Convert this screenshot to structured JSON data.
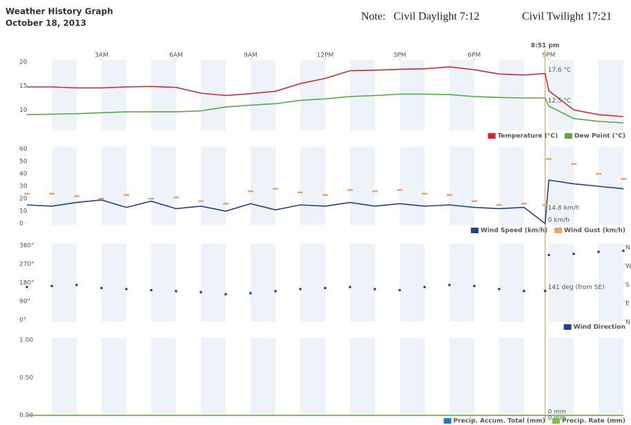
{
  "header": {
    "title": "Weather History Graph",
    "date": "October 18, 2013",
    "note": [
      "Note:",
      "Civil Daylight 7:12",
      "Civil Twilight 17:21"
    ]
  },
  "chart_data": [
    {
      "type": "line",
      "xlim": [
        0,
        24
      ],
      "xticks": [
        {
          "value": 3,
          "label": "3AM"
        },
        {
          "value": 6,
          "label": "6AM"
        },
        {
          "value": 9,
          "label": "9AM"
        },
        {
          "value": 12,
          "label": "12PM"
        },
        {
          "value": 15,
          "label": "3PM"
        },
        {
          "value": 18,
          "label": "6PM"
        },
        {
          "value": 21,
          "label": "9PM"
        }
      ],
      "marker": {
        "value": 20.85,
        "label": "8:51 pm",
        "color": "#f0a060"
      },
      "x": [
        0,
        1,
        2,
        3,
        4,
        5,
        6,
        7,
        8,
        9,
        10,
        11,
        12,
        13,
        14,
        15,
        16,
        17,
        18,
        19,
        20,
        20.85,
        21,
        22,
        23,
        24
      ],
      "ylim": [
        6,
        20
      ],
      "yticks": [
        10,
        15,
        20
      ],
      "legend": "bottom-right",
      "series": [
        {
          "name": "Temperature (°C)",
          "color": "#d9252b",
          "values": [
            14.8,
            14.8,
            14.6,
            14.6,
            14.8,
            14.9,
            14.7,
            13.5,
            13.0,
            13.4,
            13.9,
            15.5,
            16.6,
            18.2,
            18.3,
            18.5,
            18.6,
            19.0,
            18.4,
            17.5,
            17.3,
            17.6,
            14.0,
            10.0,
            9.0,
            8.6
          ],
          "value_labels": [
            null,
            null,
            null,
            null,
            null,
            null,
            null,
            null,
            null,
            null,
            null,
            null,
            null,
            null,
            null,
            null,
            null,
            null,
            null,
            null,
            null,
            "17.6 °C",
            null,
            null,
            null,
            null
          ]
        },
        {
          "name": "Dew Point (°C)",
          "color": "#5aa845",
          "values": [
            9.0,
            9.1,
            9.2,
            9.4,
            9.6,
            9.6,
            9.6,
            9.8,
            10.6,
            11.0,
            11.3,
            12.0,
            12.3,
            12.8,
            13.0,
            13.3,
            13.3,
            13.2,
            12.8,
            12.6,
            12.5,
            12.5,
            10.8,
            8.2,
            7.6,
            7.3
          ],
          "value_labels": [
            null,
            null,
            null,
            null,
            null,
            null,
            null,
            null,
            null,
            null,
            null,
            null,
            null,
            null,
            null,
            null,
            null,
            null,
            null,
            null,
            null,
            "12.5 °C",
            null,
            null,
            null,
            null
          ]
        }
      ]
    },
    {
      "type": "line",
      "xlim": [
        0,
        24
      ],
      "x": [
        0,
        1,
        2,
        3,
        4,
        5,
        6,
        7,
        8,
        9,
        10,
        11,
        12,
        13,
        14,
        15,
        16,
        17,
        18,
        19,
        20,
        20.85,
        21,
        22,
        23,
        24
      ],
      "ylim": [
        0,
        60
      ],
      "yticks": [
        0,
        10,
        20,
        30,
        40,
        50,
        60
      ],
      "legend": "bottom-right",
      "series": [
        {
          "name": "Wind Speed (km/h)",
          "color": "#1f3f8f",
          "values": [
            15,
            14,
            17,
            19,
            13,
            18,
            12,
            14,
            10,
            16,
            11,
            15,
            14,
            17,
            14,
            16,
            14,
            15,
            13,
            12,
            13,
            0,
            35,
            32,
            30,
            28
          ],
          "value_labels": [
            null,
            null,
            null,
            null,
            null,
            null,
            null,
            null,
            null,
            null,
            null,
            null,
            null,
            null,
            null,
            null,
            null,
            null,
            null,
            null,
            null,
            "0 km/h",
            null,
            null,
            null,
            null
          ]
        },
        {
          "name": "Wind Gust (km/h)",
          "color": "#f0a060",
          "type": "scatter",
          "values": [
            24,
            24,
            22,
            20,
            23,
            20,
            21,
            18,
            16,
            26,
            28,
            25,
            23,
            27,
            26,
            27,
            24,
            23,
            18,
            15,
            16,
            14.8,
            52,
            48,
            40,
            36
          ],
          "value_labels": [
            null,
            null,
            null,
            null,
            null,
            null,
            null,
            null,
            null,
            null,
            null,
            null,
            null,
            null,
            null,
            null,
            null,
            null,
            null,
            null,
            null,
            "14.8 km/h",
            null,
            null,
            null,
            null
          ]
        }
      ]
    },
    {
      "type": "scatter",
      "xlim": [
        0,
        24
      ],
      "x": [
        0,
        1,
        2,
        3,
        4,
        5,
        6,
        7,
        8,
        9,
        10,
        11,
        12,
        13,
        14,
        15,
        16,
        17,
        18,
        19,
        20,
        20.85,
        21,
        22,
        23,
        24
      ],
      "ylim": [
        0,
        360
      ],
      "yticks": [
        {
          "value": 0,
          "label": "0°"
        },
        {
          "value": 90,
          "label": "90°"
        },
        {
          "value": 180,
          "label": "180°"
        },
        {
          "value": 270,
          "label": "270°"
        },
        {
          "value": 360,
          "label": "360°"
        }
      ],
      "y2lim": [
        0,
        360
      ],
      "y2ticks": [
        {
          "value": 0,
          "label": "N"
        },
        {
          "value": 90,
          "label": "E"
        },
        {
          "value": 180,
          "label": "S"
        },
        {
          "value": 270,
          "label": "W"
        },
        {
          "value": 360,
          "label": "N"
        }
      ],
      "legend": "bottom-right",
      "series": [
        {
          "name": "Wind Direction",
          "color": "#1f3f8f",
          "values": [
            160,
            165,
            170,
            155,
            150,
            145,
            140,
            135,
            125,
            130,
            140,
            150,
            155,
            160,
            150,
            145,
            160,
            170,
            165,
            150,
            141,
            141,
            315,
            320,
            330,
            335
          ],
          "value_labels": [
            null,
            null,
            null,
            null,
            null,
            null,
            null,
            null,
            null,
            null,
            null,
            null,
            null,
            null,
            null,
            null,
            null,
            null,
            null,
            null,
            null,
            "141 deg (from SE)",
            null,
            null,
            null,
            null
          ]
        }
      ]
    },
    {
      "type": "line",
      "xlim": [
        0,
        24
      ],
      "x": [
        0,
        20.85,
        24
      ],
      "ylim": [
        0,
        1
      ],
      "yticks": [
        {
          "value": 0,
          "label": "0.00"
        },
        {
          "value": 0.5,
          "label": "0.50"
        },
        {
          "value": 1,
          "label": "1.00"
        }
      ],
      "legend": "bottom-right",
      "series": [
        {
          "name": "Precip. Accum. Total (mm)",
          "color": "#1a7fc0",
          "values": [
            0,
            0,
            0
          ],
          "value_labels": [
            null,
            "0 mm",
            null
          ]
        },
        {
          "name": "Precip. Rate (mm)",
          "color": "#7ac143",
          "values": [
            0,
            0,
            0
          ],
          "value_labels": [
            null,
            "0 mm",
            null
          ]
        }
      ]
    }
  ]
}
